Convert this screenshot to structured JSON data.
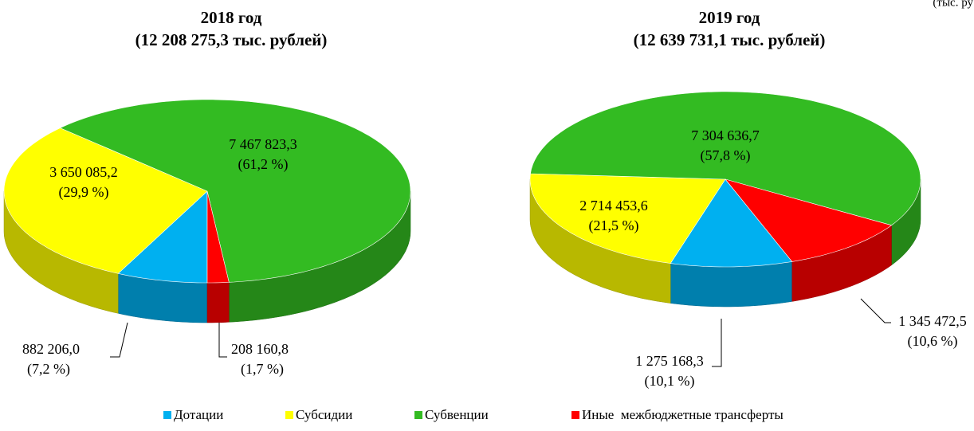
{
  "note": "(тыс. ру",
  "chart_data": [
    {
      "type": "pie",
      "title": "2018 год",
      "subtitle": "(12 208 275,3 тыс. рублей)",
      "categories": [
        "Дотации",
        "Субсидии",
        "Субвенции",
        "Иные  межбюджетные трансферты"
      ],
      "colors": [
        "#00b0f0",
        "#ffff00",
        "#33bb22",
        "#ff0000"
      ],
      "values": [
        882206.0,
        3650085.2,
        7467823.3,
        208160.8
      ],
      "value_labels": [
        "882 206,0",
        "3 650 085,2",
        "7 467 823,3",
        "208 160,8"
      ],
      "percents": [
        7.2,
        29.9,
        61.2,
        1.7
      ],
      "percent_labels": [
        "(7,2 %)",
        "(29,9 %)",
        "(61,2 %)",
        "(1,7 %)"
      ]
    },
    {
      "type": "pie",
      "title": "2019 год",
      "subtitle": "(12 639 731,1 тыс. рублей)",
      "categories": [
        "Дотации",
        "Субсидии",
        "Субвенции",
        "Иные  межбюджетные трансферты"
      ],
      "colors": [
        "#00b0f0",
        "#ffff00",
        "#33bb22",
        "#ff0000"
      ],
      "values": [
        1275168.3,
        2714453.6,
        7304636.7,
        1345472.5
      ],
      "value_labels": [
        "1 275 168,3",
        "2 714 453,6",
        "7 304 636,7",
        "1 345 472,5"
      ],
      "percents": [
        10.1,
        21.5,
        57.8,
        10.6
      ],
      "percent_labels": [
        "(10,1 %)",
        "(21,5 %)",
        "(57,8 %)",
        "(10,6 %)"
      ]
    }
  ]
}
